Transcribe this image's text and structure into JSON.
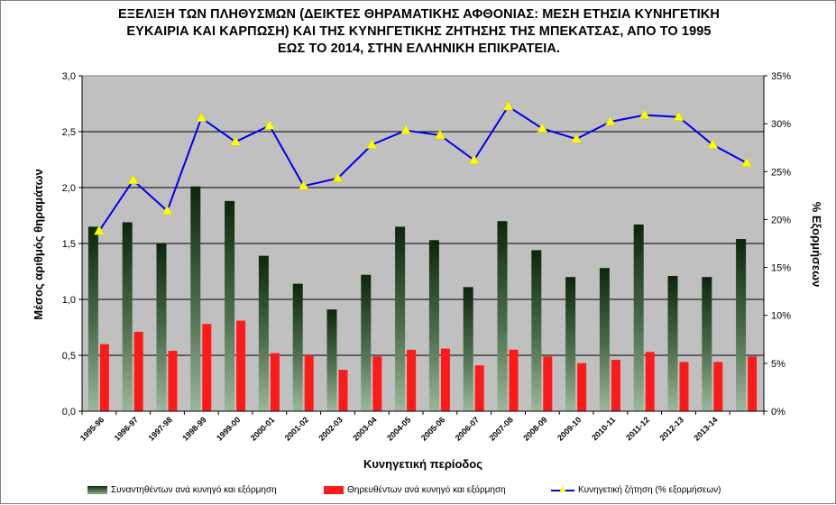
{
  "title": {
    "line1": "ΕΞΕΛΙΞΗ ΤΩΝ ΠΛΗΘΥΣΜΩΝ  (ΔΕΙΚΤΕΣ ΘΗΡΑΜΑΤΙΚΗΣ ΑΦΘΟΝΙΑΣ:  ΜΕΣΗ ΕΤΗΣΙΑ ΚΥΝΗΓΕΤΙΚΗ",
    "line2": "ΕΥΚΑΙΡΙΑ  ΚΑΙ ΚΑΡΠΩΣΗ) ΚΑΙ  ΤΗΣ ΚΥΝΗΓΕΤΙΚΗΣ ΖΗΤΗΣΗΣ ΤΗΣ ΜΠΕΚΑΤΣΑΣ, ΑΠΟ ΤΟ 1995",
    "line3": "ΕΩΣ ΤΟ 2014,  ΣΤΗΝ ΕΛΛΗΝΙΚΗ ΕΠΙΚΡΑΤΕΙΑ."
  },
  "chart_data": {
    "type": "bar",
    "title": "ΕΞΕΛΙΞΗ ΤΩΝ ΠΛΗΘΥΣΜΩΝ (ΔΕΙΚΤΕΣ ΘΗΡΑΜΑΤΙΚΗΣ ΑΦΘΟΝΙΑΣ: ΜΕΣΗ ΕΤΗΣΙΑ ΚΥΝΗΓΕΤΙΚΗ ΕΥΚΑΙΡΙΑ ΚΑΙ ΚΑΡΠΩΣΗ) ΚΑΙ ΤΗΣ ΚΥΝΗΓΕΤΙΚΗΣ ΖΗΤΗΣΗΣ ΤΗΣ ΜΠΕΚΑΤΣΑΣ, ΑΠΟ ΤΟ 1995 ΕΩΣ ΤΟ 2014, ΣΤΗΝ ΕΛΛΗΝΙΚΗ ΕΠΙΚΡΑΤΕΙΑ.",
    "xlabel": "Κυνηγετική περίοδος",
    "ylabel": "Μέσος αριθμός θηραμάτων",
    "y2label": "% Εξορμήσεων",
    "ylim": [
      0,
      3.0
    ],
    "y2lim": [
      0,
      35
    ],
    "yticks": [
      "0,0",
      "0,5",
      "1,0",
      "1,5",
      "2,0",
      "2,5",
      "3,0"
    ],
    "y2ticks": [
      "0%",
      "5%",
      "10%",
      "15%",
      "20%",
      "25%",
      "30%",
      "35%"
    ],
    "grid": true,
    "legend_position": "bottom",
    "categories": [
      "1995-96",
      "1996-97",
      "1997-98",
      "1998-99",
      "1999-00",
      "2000-01",
      "2001-02",
      "2002-03",
      "2003-04",
      "2004-05",
      "2005-06",
      "2006-07",
      "2007-08",
      "2008-09",
      "2009-10",
      "2010-11",
      "2011-12",
      "2012-13",
      "2013-14",
      ""
    ],
    "series": [
      {
        "name": "Συναντηθέντων ανά κυνηγό και εξόρμηση",
        "type": "bar",
        "axis": "left",
        "color": "#1f3f1f",
        "values": [
          1.65,
          1.69,
          1.5,
          2.01,
          1.88,
          1.39,
          1.14,
          0.91,
          1.22,
          1.65,
          1.53,
          1.11,
          1.7,
          1.44,
          1.2,
          1.28,
          1.67,
          1.21,
          1.2,
          1.54
        ]
      },
      {
        "name": "Θηρευθέντων ανά κυνηγό και εξόρμηση",
        "type": "bar",
        "axis": "left",
        "color": "#ff1a1a",
        "values": [
          0.6,
          0.71,
          0.54,
          0.78,
          0.81,
          0.52,
          0.5,
          0.37,
          0.49,
          0.55,
          0.56,
          0.41,
          0.55,
          0.49,
          0.43,
          0.46,
          0.53,
          0.44,
          0.44,
          0.49
        ]
      },
      {
        "name": "Κυνηγετική ζήτηση (% εξορμήσεων)",
        "type": "line",
        "axis": "right",
        "color": "#0000ee",
        "marker_color": "#ffff00",
        "values": [
          18.8,
          24.1,
          20.9,
          30.6,
          28.1,
          29.8,
          23.5,
          24.3,
          27.8,
          29.3,
          28.8,
          26.2,
          31.8,
          29.5,
          28.4,
          30.2,
          30.9,
          30.7,
          27.8,
          25.9
        ]
      }
    ]
  }
}
